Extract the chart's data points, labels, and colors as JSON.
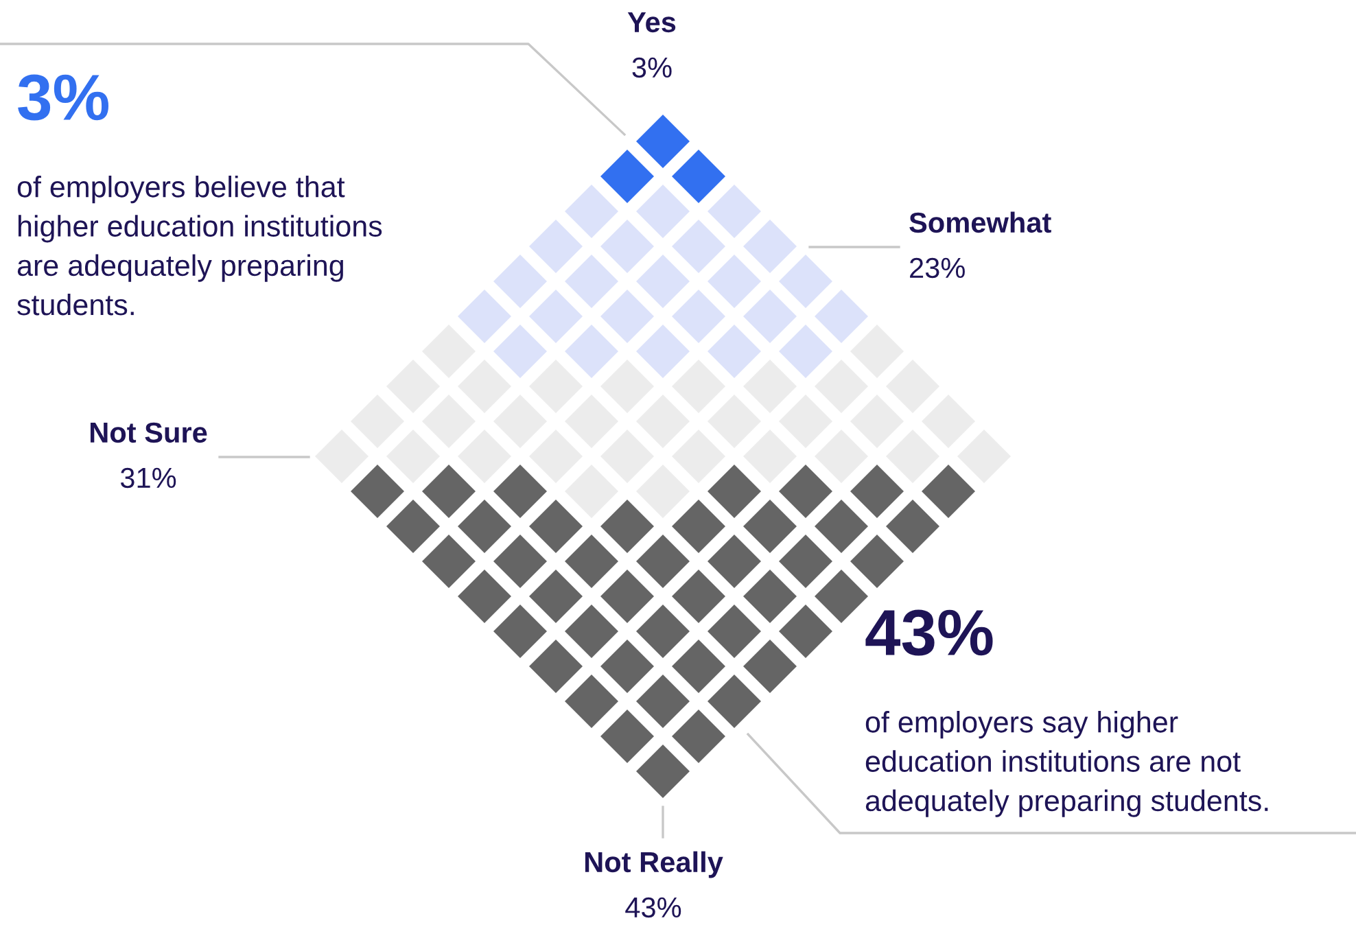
{
  "chart_data": {
    "type": "other",
    "categories": [
      "Yes",
      "Somewhat",
      "Not Sure",
      "Not Really"
    ],
    "values": [
      3,
      23,
      31,
      43
    ],
    "value_labels": [
      "3%",
      "23%",
      "31%",
      "43%"
    ],
    "colors": [
      "#3270f0",
      "#dce2fa",
      "#ececec",
      "#656565"
    ],
    "annotations": [
      "3%",
      "of employers believe that\nhigher education institutions\nare adequately preparing\nstudents.",
      "43%",
      "of employers say higher\neducation institutions are not\nadequately preparing students."
    ]
  }
}
